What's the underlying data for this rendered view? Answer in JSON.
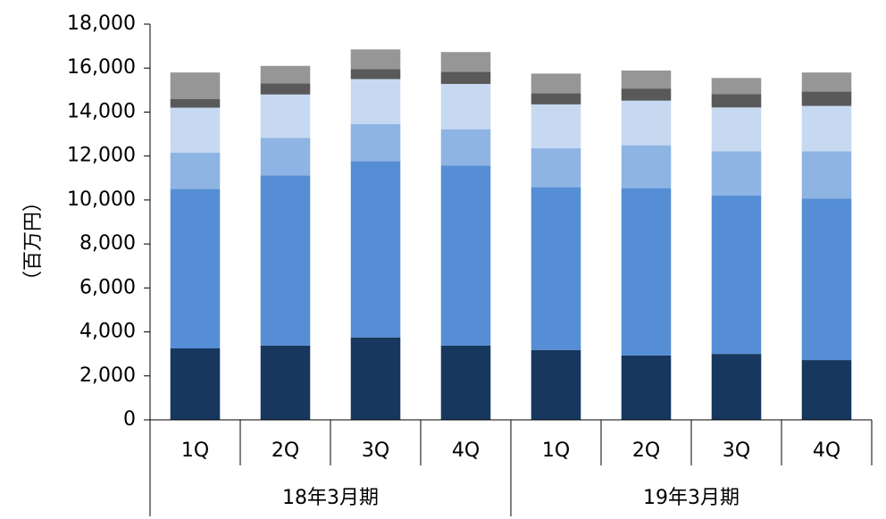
{
  "chart_data": {
    "type": "bar",
    "stacked": true,
    "ylabel": "（百万円）",
    "ylim": [
      0,
      18000
    ],
    "yticks": [
      0,
      2000,
      4000,
      6000,
      8000,
      10000,
      12000,
      14000,
      16000,
      18000
    ],
    "ytick_labels": [
      "0",
      "2,000",
      "4,000",
      "6,000",
      "8,000",
      "10,000",
      "12,000",
      "14,000",
      "16,000",
      "18,000"
    ],
    "categories": [
      "1Q",
      "2Q",
      "3Q",
      "4Q",
      "1Q",
      "2Q",
      "3Q",
      "4Q"
    ],
    "groups": [
      {
        "label": "18年3月期",
        "span": [
          0,
          3
        ]
      },
      {
        "label": "19年3月期",
        "span": [
          4,
          7
        ]
      }
    ],
    "series": [
      {
        "color": "#17375e",
        "values": [
          3250,
          3380,
          3750,
          3380,
          3180,
          2930,
          3000,
          2720
        ]
      },
      {
        "color": "#558ed5",
        "values": [
          7250,
          7740,
          8020,
          8180,
          7400,
          7610,
          7210,
          7350
        ]
      },
      {
        "color": "#8eb4e3",
        "values": [
          1660,
          1700,
          1680,
          1660,
          1780,
          1950,
          2000,
          2150
        ]
      },
      {
        "color": "#c6d9f1",
        "values": [
          2040,
          1980,
          2050,
          2060,
          1990,
          2030,
          2000,
          2060
        ]
      },
      {
        "color": "#595959",
        "values": [
          400,
          500,
          450,
          550,
          500,
          550,
          600,
          650
        ]
      },
      {
        "color": "#969696",
        "values": [
          1200,
          800,
          900,
          900,
          900,
          820,
          740,
          870
        ]
      }
    ]
  }
}
